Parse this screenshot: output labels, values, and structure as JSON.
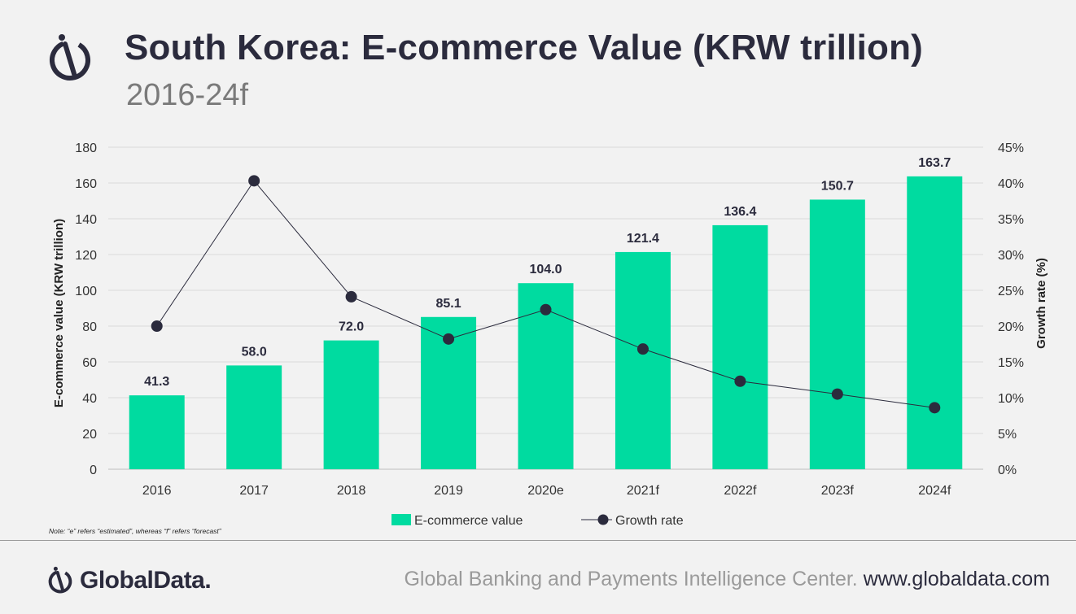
{
  "header": {
    "title": "South Korea: E-commerce Value (KRW trillion)",
    "subtitle": "2016-24f"
  },
  "note": "Note: “e” refers “estimated”, whereas “f” refers “forecast”",
  "footer": {
    "brand": "GlobalData.",
    "center_text": "Global Banking and Payments Intelligence Center.",
    "url": "www.globaldata.com"
  },
  "colors": {
    "bar": "#00dba0",
    "line": "#2b2b3d",
    "title": "#2b2b3d",
    "subtitle": "#7a7a7a",
    "grid": "#d9d9d9"
  },
  "chart_data": {
    "type": "bar",
    "categories": [
      "2016",
      "2017",
      "2018",
      "2019",
      "2020e",
      "2021f",
      "2022f",
      "2023f",
      "2024f"
    ],
    "series": [
      {
        "name": "E-commerce value",
        "type": "bar",
        "axis": "left",
        "values": [
          41.3,
          58.0,
          72.0,
          85.1,
          104.0,
          121.4,
          136.4,
          150.7,
          163.7
        ],
        "labels": [
          "41.3",
          "58.0",
          "72.0",
          "85.1",
          "104.0",
          "121.4",
          "136.4",
          "150.7",
          "163.7"
        ]
      },
      {
        "name": "Growth rate",
        "type": "line",
        "axis": "right",
        "values": [
          20.0,
          40.3,
          24.1,
          18.2,
          22.3,
          16.8,
          12.3,
          10.5,
          8.6
        ]
      }
    ],
    "ylabel": "E-commerce value (KRW trillion)",
    "y2label": "Growth rate (%)",
    "ylim": [
      0,
      180
    ],
    "y2lim": [
      0,
      45
    ],
    "yticks": [
      "0",
      "20",
      "40",
      "60",
      "80",
      "100",
      "120",
      "140",
      "160",
      "180"
    ],
    "y2ticks": [
      "0%",
      "5%",
      "10%",
      "15%",
      "20%",
      "25%",
      "30%",
      "35%",
      "40%",
      "45%"
    ],
    "grid": true,
    "legend": "bottom"
  }
}
